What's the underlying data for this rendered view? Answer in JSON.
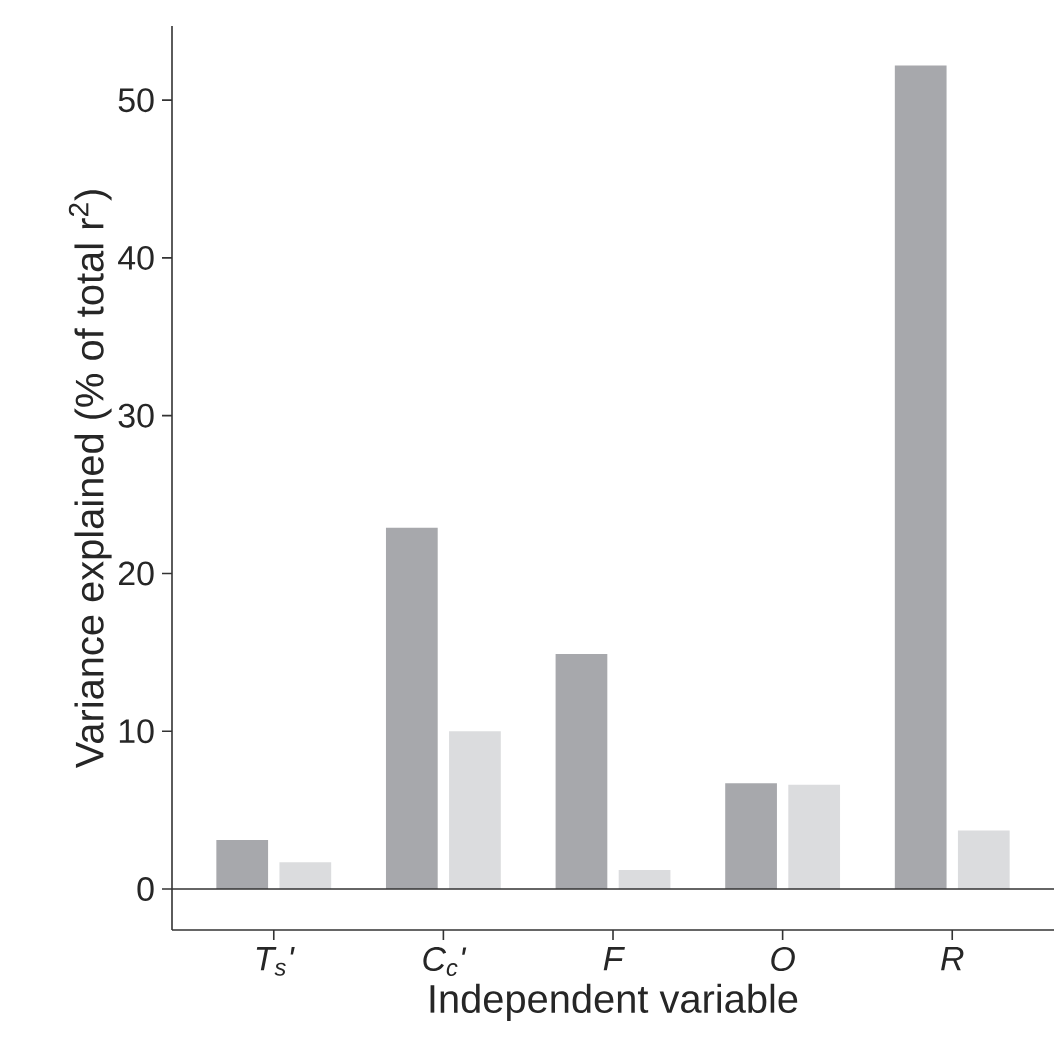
{
  "chart_data": {
    "type": "bar",
    "xlabel": "Independent variable",
    "ylabel": "Variance explained (% of total r$^{2}$)",
    "categories": [
      "T$_{s}$'",
      "C$_{c}$'",
      "F",
      "O",
      "R"
    ],
    "series": [
      {
        "color": "#a7a8ac",
        "values": [
          3.1,
          22.9,
          14.9,
          6.7,
          52.2
        ]
      },
      {
        "color": "#dbdcde",
        "values": [
          1.7,
          10.0,
          1.2,
          6.6,
          3.7
        ]
      }
    ],
    "ylim": [
      -2.6,
      54.7
    ],
    "yticks": [
      0,
      10,
      20,
      30,
      40,
      50
    ],
    "ref_lines": [
      {
        "axis": "y",
        "value": 0,
        "color": "#333333"
      }
    ],
    "grid": false
  }
}
